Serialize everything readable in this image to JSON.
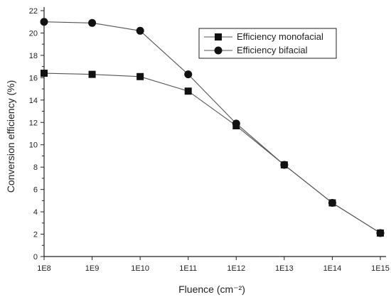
{
  "chart_data": {
    "type": "line",
    "title": "",
    "xlabel": "Fluence (cm⁻²)",
    "ylabel": "Conversion efficiency (%)",
    "x": [
      "1E8",
      "1E9",
      "1E10",
      "1E11",
      "1E12",
      "1E13",
      "1E14",
      "1E15"
    ],
    "x_scale": "log",
    "ylim": [
      0,
      22
    ],
    "yticks": [
      0,
      2,
      4,
      6,
      8,
      10,
      12,
      14,
      16,
      18,
      20,
      22
    ],
    "grid": false,
    "legend_position": "top-right",
    "series": [
      {
        "name": "Efficiency monofacial",
        "marker": "square",
        "values": [
          16.4,
          16.3,
          16.1,
          14.8,
          11.7,
          8.2,
          4.8,
          2.1
        ]
      },
      {
        "name": "Efficiency bifacial",
        "marker": "circle",
        "values": [
          21.0,
          20.9,
          20.2,
          16.3,
          11.9,
          8.2,
          4.8,
          2.1
        ]
      }
    ],
    "colors": {
      "line": "#555555",
      "marker": "#111111",
      "axis": "#222222"
    }
  }
}
